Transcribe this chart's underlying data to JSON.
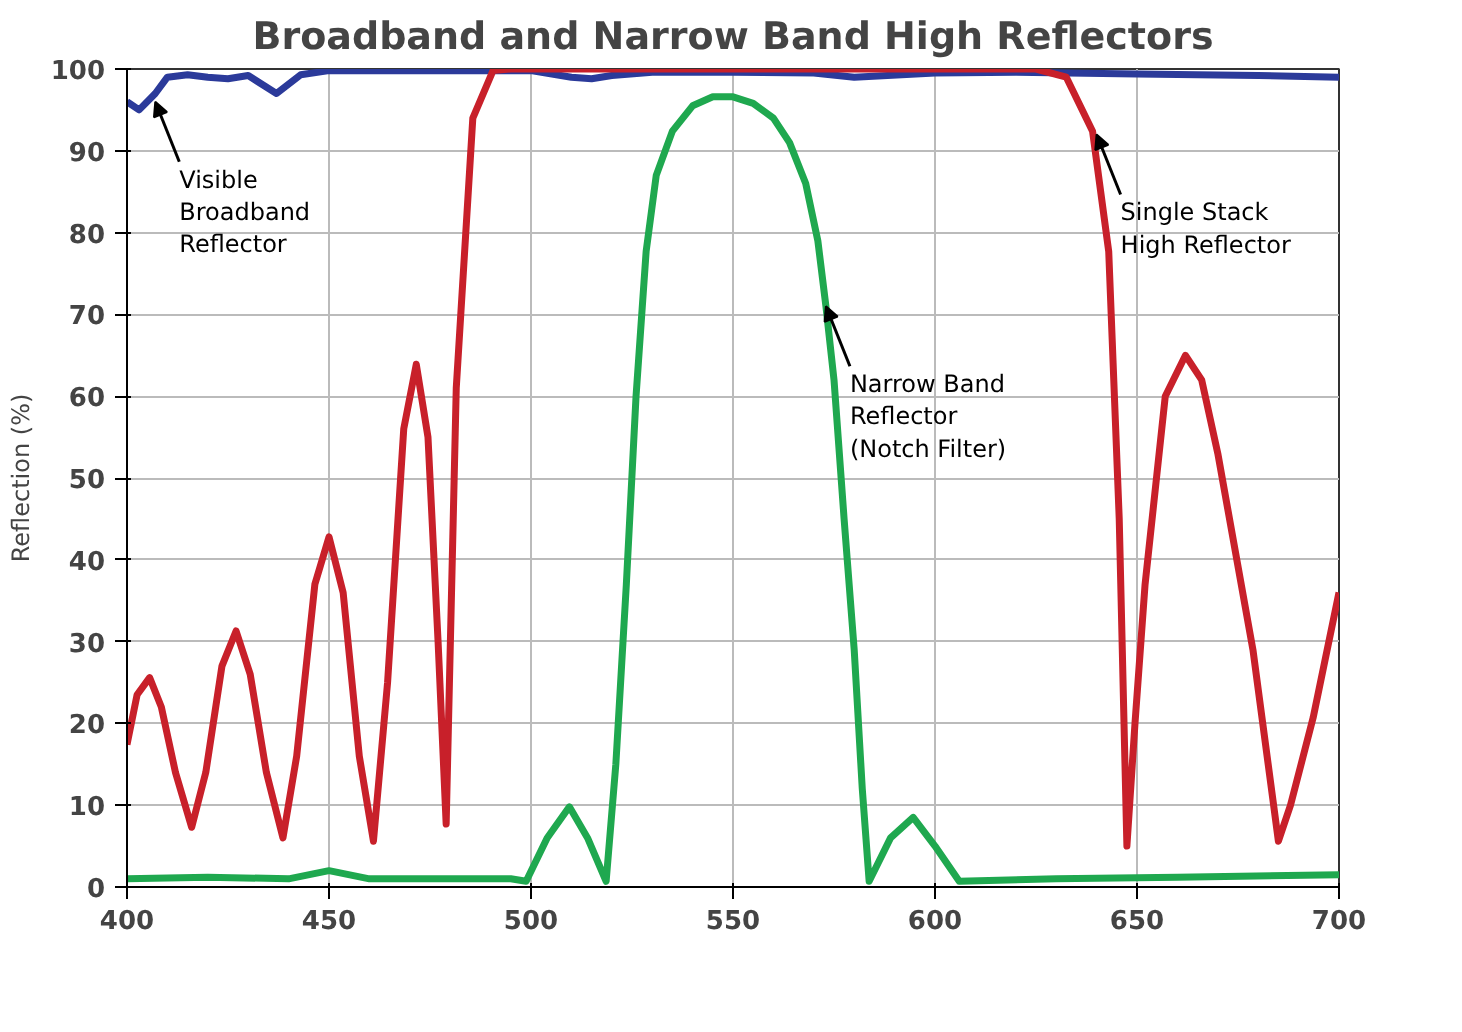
{
  "chart_data": {
    "type": "line",
    "title": "Broadband and Narrow Band High Reflectors",
    "ylabel": "Reflection (%)",
    "xlim": [
      400,
      700
    ],
    "ylim": [
      0,
      100
    ],
    "xticks": [
      400,
      450,
      500,
      550,
      600,
      650,
      700
    ],
    "yticks": [
      0,
      10,
      20,
      30,
      40,
      50,
      60,
      70,
      80,
      90,
      100
    ],
    "grid": true,
    "marker": "none",
    "line_style": "solid",
    "series": [
      {
        "color": "#2b3a9a",
        "x": [
          400,
          403,
          407,
          410,
          415,
          420,
          425,
          430,
          437,
          443,
          450,
          470,
          500,
          510,
          515,
          520,
          530,
          550,
          570,
          580,
          600,
          620,
          650,
          680,
          700
        ],
        "values": [
          96,
          95,
          97,
          99,
          99.3,
          99,
          98.8,
          99.2,
          97,
          99.3,
          99.8,
          99.8,
          99.8,
          99,
          98.8,
          99.2,
          99.6,
          99.6,
          99.5,
          99,
          99.5,
          99.6,
          99.4,
          99.2,
          99
        ]
      },
      {
        "color": "#c8202a",
        "x": [
          400,
          402.5,
          405.6,
          408.5,
          412,
          416,
          419.5,
          423.5,
          427,
          430.5,
          434.5,
          438.6,
          442,
          446.5,
          450,
          453.5,
          457.5,
          461,
          464.5,
          468.5,
          471.6,
          474.5,
          477,
          479,
          481.5,
          485.6,
          490.6,
          495,
          550,
          600,
          625,
          632.5,
          639,
          643,
          645.6,
          647.5,
          649.5,
          652,
          657,
          662,
          666,
          670,
          678.7,
          685,
          688,
          693.6,
          700
        ],
        "values": [
          17.4,
          23.5,
          25.6,
          22,
          14,
          7.3,
          14,
          27,
          31.3,
          26,
          14,
          6,
          16,
          37,
          42.8,
          36,
          16,
          5.6,
          25,
          56,
          63.9,
          55,
          30,
          7.7,
          61,
          94,
          99.8,
          100,
          100,
          100,
          100,
          99,
          92.4,
          77.7,
          45,
          5,
          20,
          37,
          60,
          65,
          62,
          53,
          29,
          5.6,
          10,
          20.7,
          36
        ]
      },
      {
        "color": "#1fa84f",
        "x": [
          400,
          420,
          440,
          450,
          460,
          480,
          495,
          498.8,
          504,
          509.5,
          514,
          518.6,
          521,
          523.6,
          526,
          528.5,
          531,
          535,
          540,
          545,
          550,
          555,
          560,
          564,
          568,
          571,
          573,
          575,
          577.5,
          580,
          582,
          583.7,
          589,
          594.6,
          600,
          606,
          630,
          660,
          700
        ],
        "values": [
          1,
          1.2,
          1,
          2,
          1,
          1,
          1,
          0.7,
          6,
          9.8,
          6,
          0.7,
          15,
          37,
          60,
          77.7,
          87,
          92.4,
          95.5,
          96.6,
          96.6,
          95.8,
          94,
          91,
          86,
          79,
          71,
          62,
          45,
          29,
          12,
          0.7,
          6,
          8.5,
          5,
          0.7,
          1,
          1.2,
          1.5
        ]
      }
    ],
    "annotations": [
      {
        "text": "Visible\nBroadband\nReflector",
        "x": 407,
        "y": 96
      },
      {
        "text": "Single Stack\nHigh Reflector",
        "x": 640,
        "y": 92
      },
      {
        "text": "Narrow Band\nReflector\n(Notch Filter)",
        "x": 573,
        "y": 71
      }
    ]
  }
}
